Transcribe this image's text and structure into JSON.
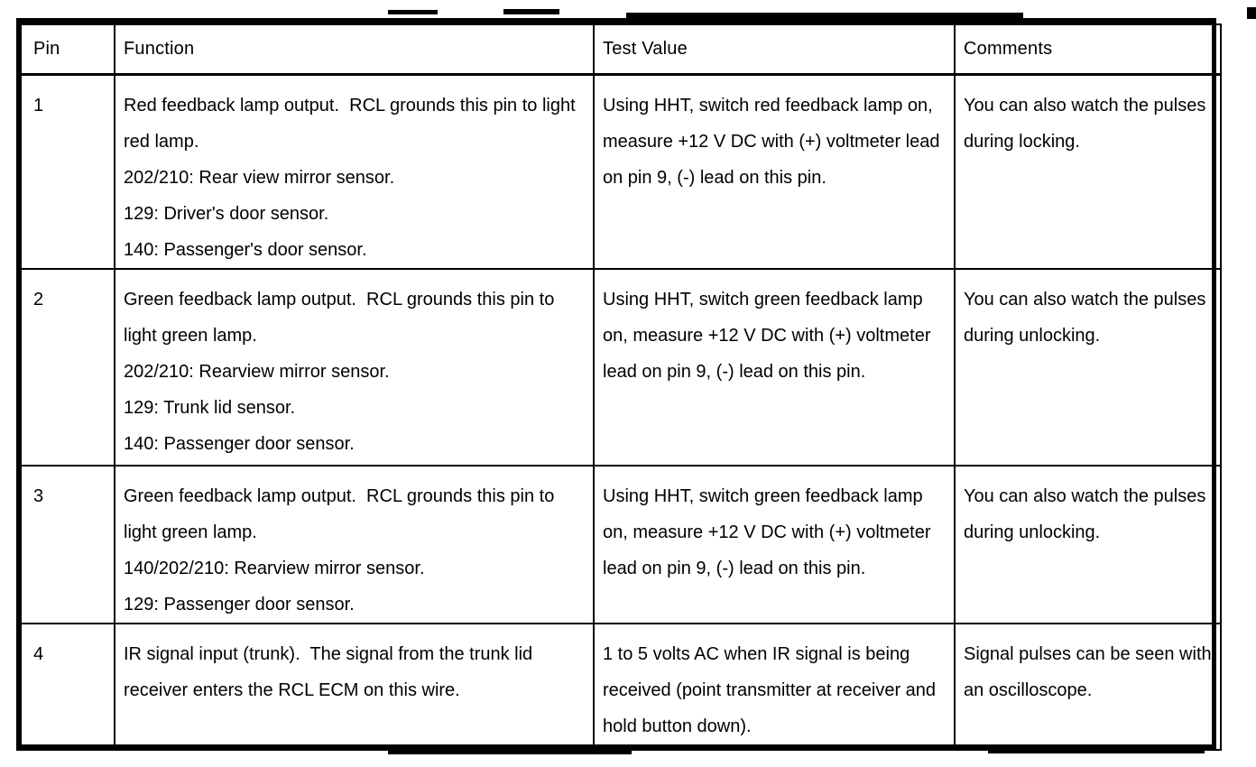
{
  "table": {
    "headers": [
      "Pin",
      "Function",
      "Test Value",
      "Comments"
    ],
    "rows": [
      {
        "pin": "1",
        "function_description": "Red feedback lamp output.  RCL grounds this pin to light red lamp.",
        "function_lines": [
          "202/210: Rear view mirror sensor.",
          "129: Driver's door sensor.",
          "140: Passenger's door sensor."
        ],
        "test_value": "Using HHT, switch red feedback lamp on, measure +12 V DC with (+) voltmeter lead on pin 9, (-) lead on this pin.",
        "comments": "You can also watch the pulses during locking."
      },
      {
        "pin": "2",
        "function_description": "Green feedback lamp output.  RCL grounds this pin to light green lamp.",
        "function_lines": [
          "202/210: Rearview mirror sensor.",
          "129: Trunk lid sensor.",
          "140: Passenger door sensor."
        ],
        "test_value": "Using HHT, switch green feedback lamp on, measure +12 V DC with (+) voltmeter lead on pin 9, (-) lead on this pin.",
        "comments": "You can also watch the pulses during unlocking."
      },
      {
        "pin": "3",
        "function_description": "Green feedback lamp output.  RCL grounds this pin to light green lamp.",
        "function_lines": [
          "140/202/210: Rearview mirror sensor.",
          "129: Passenger door sensor."
        ],
        "test_value": "Using HHT, switch green feedback lamp on, measure +12 V DC with (+) voltmeter lead on pin 9, (-) lead on this pin.",
        "comments": "You can also watch the pulses during unlocking."
      },
      {
        "pin": "4",
        "function_description": "IR signal input (trunk).  The signal from the trunk lid receiver enters the RCL ECM on this wire.",
        "function_lines": [],
        "test_value": "1 to 5 volts AC when IR signal is being received (point transmitter at receiver and hold button down).",
        "comments": "Signal pulses can be seen with an oscilloscope."
      }
    ]
  },
  "colors": {
    "ink": "#000000",
    "paper": "#ffffff"
  }
}
